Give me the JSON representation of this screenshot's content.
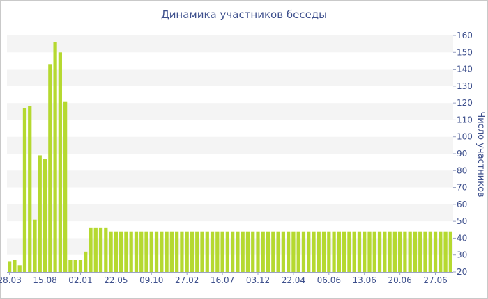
{
  "chart_data": {
    "type": "bar",
    "title": "Динамика участников беседы",
    "ylabel": "Число участников",
    "xlabel": "",
    "ylim": [
      20,
      160
    ],
    "yticks": [
      20,
      30,
      40,
      50,
      60,
      70,
      80,
      90,
      100,
      110,
      120,
      130,
      140,
      150,
      160
    ],
    "xtick_labels": [
      "28.03",
      "15.08",
      "02.01",
      "22.05",
      "09.10",
      "27.02",
      "16.07",
      "03.12",
      "22.04",
      "06.06",
      "13.06",
      "20.06",
      "27.06"
    ],
    "xtick_bar_index": [
      0,
      7,
      14,
      21,
      28,
      35,
      42,
      49,
      56,
      63,
      70,
      77,
      84
    ],
    "grid": "horizontal-bands",
    "legend": "none",
    "bar_color": "#b5d930",
    "axis_text_color": "#3d4f8c",
    "values": [
      26,
      27,
      24,
      117,
      118,
      51,
      89,
      87,
      143,
      156,
      150,
      121,
      27,
      27,
      27,
      32,
      46,
      46,
      46,
      46,
      44,
      44,
      44,
      44,
      44,
      44,
      44,
      44,
      44,
      44,
      44,
      44,
      44,
      44,
      44,
      44,
      44,
      44,
      44,
      44,
      44,
      44,
      44,
      44,
      44,
      44,
      44,
      44,
      44,
      44,
      44,
      44,
      44,
      44,
      44,
      44,
      44,
      44,
      44,
      44,
      44,
      44,
      44,
      44,
      44,
      44,
      44,
      44,
      44,
      44,
      44,
      44,
      44,
      44,
      44,
      44,
      44,
      44,
      44,
      44,
      44,
      44,
      44,
      44,
      44,
      44,
      44,
      44
    ]
  }
}
